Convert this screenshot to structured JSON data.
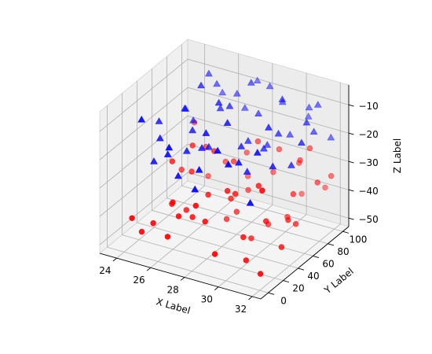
{
  "chart_data": {
    "type": "scatter3d",
    "title": "",
    "xlabel": "X Label",
    "ylabel": "Y Label",
    "zlabel": "Z Label",
    "xlim": [
      23,
      32.5
    ],
    "ylim": [
      -10,
      108
    ],
    "zlim": [
      -53,
      -3
    ],
    "xticks": [
      24,
      26,
      28,
      30,
      32
    ],
    "yticks": [
      0,
      20,
      40,
      60,
      80,
      100
    ],
    "zticks": [
      -10,
      -20,
      -30,
      -40,
      -50
    ],
    "grid": true,
    "colors": {
      "series_a": "#ff0000",
      "series_b": "#0000ff",
      "pane": "#f2f2f2"
    },
    "series": [
      {
        "marker": "o",
        "color": "#ff0000",
        "points": [
          [
            24.2,
            6,
            -42
          ],
          [
            24.6,
            10,
            -47
          ],
          [
            25.1,
            14,
            -44
          ],
          [
            25.5,
            30,
            -40
          ],
          [
            25.9,
            22,
            -37
          ],
          [
            26.3,
            6,
            -45
          ],
          [
            26.8,
            28,
            -42
          ],
          [
            27.2,
            40,
            -36
          ],
          [
            27.7,
            12,
            -33
          ],
          [
            28.1,
            50,
            -38
          ],
          [
            28.6,
            34,
            -31
          ],
          [
            29.0,
            8,
            -47
          ],
          [
            29.5,
            60,
            -35
          ],
          [
            30.0,
            44,
            -29
          ],
          [
            30.4,
            18,
            -49
          ],
          [
            30.9,
            70,
            -36
          ],
          [
            31.3,
            54,
            -41
          ],
          [
            31.8,
            82,
            -33
          ],
          [
            24.9,
            44,
            -29
          ],
          [
            25.7,
            52,
            -33
          ],
          [
            26.5,
            64,
            -27
          ],
          [
            27.3,
            72,
            -31
          ],
          [
            28.2,
            84,
            -25
          ],
          [
            29.1,
            92,
            -28
          ],
          [
            30.1,
            96,
            -32
          ],
          [
            31.0,
            90,
            -24
          ],
          [
            31.9,
            98,
            -34
          ],
          [
            24.4,
            68,
            -38
          ],
          [
            25.3,
            80,
            -31
          ],
          [
            26.2,
            86,
            -36
          ],
          [
            27.1,
            94,
            -33
          ],
          [
            28.0,
            60,
            -45
          ],
          [
            28.9,
            74,
            -39
          ],
          [
            29.8,
            28,
            -44
          ],
          [
            30.7,
            38,
            -39
          ],
          [
            31.6,
            10,
            -50
          ],
          [
            26.0,
            38,
            -43
          ],
          [
            27.5,
            58,
            -48
          ],
          [
            29.3,
            50,
            -50
          ],
          [
            30.2,
            78,
            -47
          ],
          [
            31.4,
            62,
            -44
          ],
          [
            25.0,
            90,
            -44
          ],
          [
            26.9,
            100,
            -43
          ],
          [
            28.4,
            100,
            -39
          ],
          [
            29.9,
            104,
            -45
          ],
          [
            31.2,
            106,
            -41
          ],
          [
            24.1,
            92,
            -27
          ],
          [
            27.9,
            20,
            -40
          ],
          [
            30.6,
            86,
            -28
          ],
          [
            28.8,
            40,
            -33
          ],
          [
            26.6,
            14,
            -39
          ],
          [
            29.6,
            66,
            -48
          ],
          [
            31.7,
            36,
            -46
          ],
          [
            25.4,
            60,
            -26
          ],
          [
            27.8,
            80,
            -42
          ]
        ]
      },
      {
        "marker": "^",
        "color": "#0000ff",
        "points": [
          [
            24.3,
            40,
            -15
          ],
          [
            24.8,
            30,
            -18
          ],
          [
            25.2,
            54,
            -12
          ],
          [
            25.7,
            20,
            -20
          ],
          [
            26.1,
            44,
            -16
          ],
          [
            26.6,
            70,
            -13
          ],
          [
            27.0,
            36,
            -19
          ],
          [
            27.5,
            62,
            -9
          ],
          [
            27.9,
            12,
            -20
          ],
          [
            28.4,
            80,
            -14
          ],
          [
            28.8,
            48,
            -18
          ],
          [
            29.3,
            92,
            -11
          ],
          [
            29.7,
            24,
            -17
          ],
          [
            30.2,
            66,
            -15
          ],
          [
            30.6,
            98,
            -12
          ],
          [
            31.1,
            38,
            -19
          ],
          [
            31.5,
            84,
            -16
          ],
          [
            32.0,
            56,
            -13
          ],
          [
            24.5,
            12,
            -8
          ],
          [
            25.0,
            70,
            -20
          ],
          [
            25.6,
            88,
            -10
          ],
          [
            26.3,
            8,
            -14
          ],
          [
            26.9,
            96,
            -18
          ],
          [
            27.6,
            28,
            -11
          ],
          [
            28.2,
            100,
            -9
          ],
          [
            28.9,
            14,
            -12
          ],
          [
            29.6,
            60,
            -20
          ],
          [
            30.3,
            104,
            -17
          ],
          [
            30.9,
            22,
            -11
          ],
          [
            31.6,
            72,
            -10
          ],
          [
            24.2,
            78,
            -19
          ],
          [
            25.4,
            100,
            -16
          ],
          [
            26.7,
            90,
            -12
          ],
          [
            27.3,
            52,
            -6
          ],
          [
            28.6,
            34,
            -7
          ],
          [
            29.9,
            78,
            -6
          ],
          [
            31.3,
            94,
            -9
          ],
          [
            25.9,
            60,
            -4
          ],
          [
            27.8,
            84,
            -5
          ],
          [
            30.5,
            46,
            -8
          ],
          [
            24.7,
            24,
            -25
          ],
          [
            26.4,
            18,
            -26
          ],
          [
            28.0,
            4,
            -25
          ],
          [
            29.5,
            40,
            -24
          ],
          [
            31.0,
            10,
            -26
          ],
          [
            26.8,
            50,
            -22
          ],
          [
            29.1,
            76,
            -23
          ],
          [
            31.8,
            100,
            -21
          ],
          [
            25.3,
            84,
            -6
          ],
          [
            27.2,
            106,
            -10
          ],
          [
            30.0,
            86,
            -20
          ],
          [
            31.4,
            56,
            -22
          ],
          [
            28.5,
            64,
            -20
          ],
          [
            26.2,
            34,
            -21
          ],
          [
            29.8,
            8,
            -14
          ]
        ]
      }
    ]
  }
}
